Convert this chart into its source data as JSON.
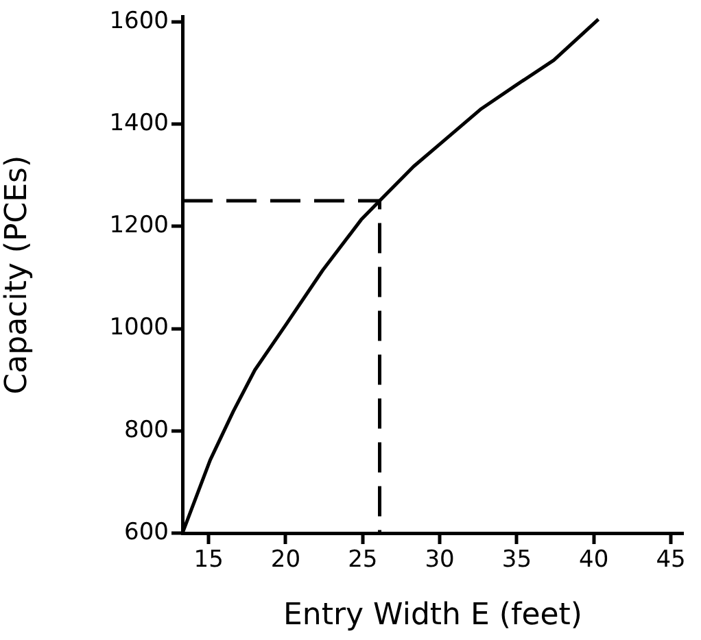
{
  "chart_data": {
    "type": "line",
    "xlabel": "Entry Width E (feet)",
    "ylabel": "Capacity (PCEs)",
    "xlim": [
      13.3,
      45.8
    ],
    "xticks": [
      15,
      20,
      25,
      30,
      35,
      40,
      45
    ],
    "ylim": [
      600,
      1610
    ],
    "yticks": [
      600,
      800,
      1000,
      1200,
      1400,
      1600
    ],
    "grid": false,
    "legend": false,
    "marker": "none",
    "series": [
      {
        "color": "#000000",
        "line_style": "solid",
        "x": [
          13.3,
          15.1,
          16.6,
          18,
          20,
          22.4,
          24.9,
          26.1,
          28.3,
          29.9,
          32.7,
          34.9,
          37.4,
          40.3
        ],
        "values": [
          600,
          743,
          838,
          919,
          1007,
          1114,
          1213,
          1250,
          1317,
          1358,
          1430,
          1475,
          1525,
          1605
        ]
      },
      {
        "color": "#000000",
        "line_style": "dashed",
        "x": [
          13.3,
          26.1,
          26.1
        ],
        "values": [
          1250,
          1250,
          600
        ]
      }
    ]
  }
}
